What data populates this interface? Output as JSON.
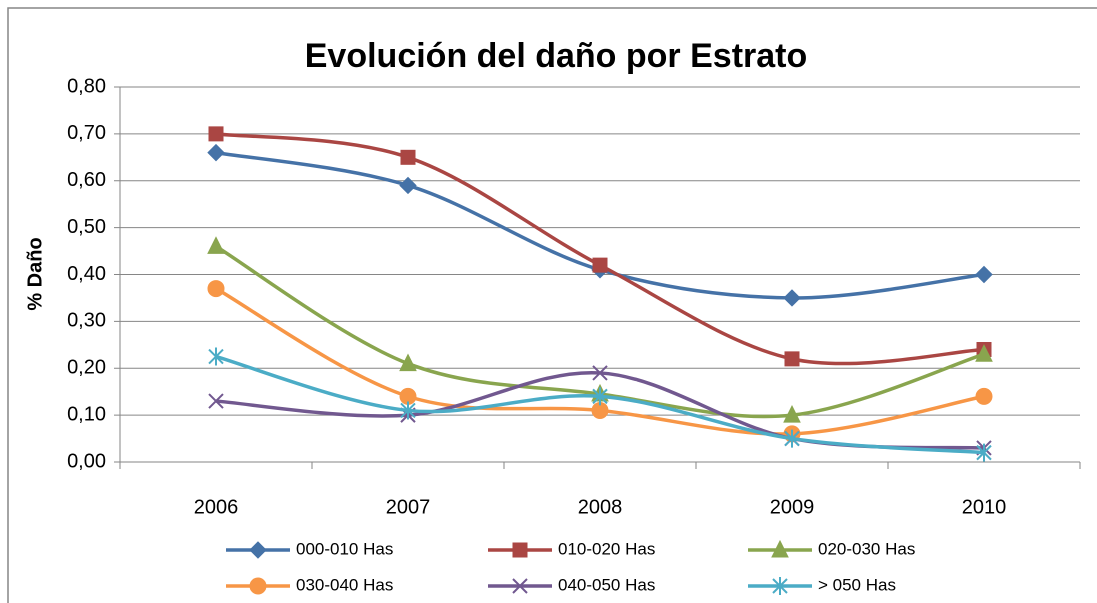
{
  "chart_data": {
    "type": "line",
    "title": "Evolución del daño por Estrato",
    "y_label": "% Daño",
    "categories": [
      "2006",
      "2007",
      "2008",
      "2009",
      "2010"
    ],
    "series": [
      {
        "name": "000-010 Has",
        "color": "#4572a7",
        "marker": "diamond",
        "values": [
          0.66,
          0.59,
          0.41,
          0.35,
          0.4
        ]
      },
      {
        "name": "010-020 Has",
        "color": "#aa4643",
        "marker": "square",
        "values": [
          0.7,
          0.65,
          0.42,
          0.22,
          0.24
        ]
      },
      {
        "name": "020-030 Has",
        "color": "#89a54e",
        "marker": "triangle",
        "values": [
          0.46,
          0.21,
          0.145,
          0.1,
          0.23
        ]
      },
      {
        "name": "030-040 Has",
        "color": "#f79646",
        "marker": "circle",
        "values": [
          0.37,
          0.14,
          0.11,
          0.06,
          0.14
        ]
      },
      {
        "name": "040-050 Has",
        "color": "#71588f",
        "marker": "x",
        "values": [
          0.13,
          0.1,
          0.19,
          0.05,
          0.03
        ]
      },
      {
        "name": "> 050 Has",
        "color": "#4bacc6",
        "marker": "star",
        "values": [
          0.225,
          0.11,
          0.14,
          0.05,
          0.02
        ]
      }
    ],
    "ylim": [
      0,
      0.8
    ],
    "yticks": [
      {
        "value": 0,
        "label": "0,00"
      },
      {
        "value": 0.1,
        "label": "0,10"
      },
      {
        "value": 0.2,
        "label": "0,20"
      },
      {
        "value": 0.3,
        "label": "0,30"
      },
      {
        "value": 0.4,
        "label": "0,40"
      },
      {
        "value": 0.5,
        "label": "0,50"
      },
      {
        "value": 0.6,
        "label": "0,60"
      },
      {
        "value": 0.7,
        "label": "0,70"
      },
      {
        "value": 0.8,
        "label": "0,80"
      }
    ],
    "grid": true,
    "smooth": true,
    "legend": "bottom"
  }
}
